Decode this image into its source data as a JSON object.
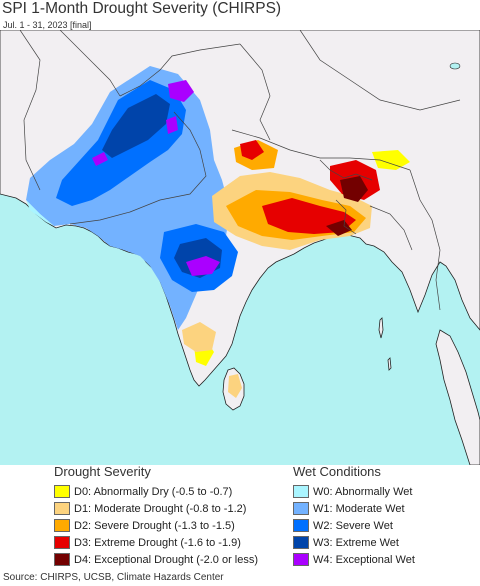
{
  "title": "SPI 1-Month Drought Severity (CHIRPS)",
  "subtitle": "Jul. 1 - 31, 2023 [final]",
  "colors": {
    "ocean": "#b3f2f2",
    "land": "#f2eff2",
    "border": "#444444",
    "coast": "#222222"
  },
  "legend": {
    "drought": {
      "heading": "Drought Severity",
      "items": [
        {
          "label": "D0: Abnormally Dry (-0.5 to -0.7)",
          "color": "#ffff00"
        },
        {
          "label": "D1: Moderate Drought (-0.8 to -1.2)",
          "color": "#fcd37f"
        },
        {
          "label": "D2: Severe Drought (-1.3 to -1.5)",
          "color": "#ffaa00"
        },
        {
          "label": "D3: Extreme Drought (-1.6 to -1.9)",
          "color": "#e60000"
        },
        {
          "label": "D4: Exceptional Drought (-2.0 or less)",
          "color": "#730000"
        }
      ]
    },
    "wet": {
      "heading": "Wet Conditions",
      "items": [
        {
          "label": "W0: Abnormally Wet",
          "color": "#aaf5ff"
        },
        {
          "label": "W1: Moderate Wet",
          "color": "#73b2ff"
        },
        {
          "label": "W2: Severe Wet",
          "color": "#0070ff"
        },
        {
          "label": "W3: Extreme Wet",
          "color": "#0044aa"
        },
        {
          "label": "W4: Exceptional Wet",
          "color": "#aa00ff"
        }
      ]
    }
  },
  "source": "Source: CHIRPS, UCSB, Climate Hazards Center"
}
